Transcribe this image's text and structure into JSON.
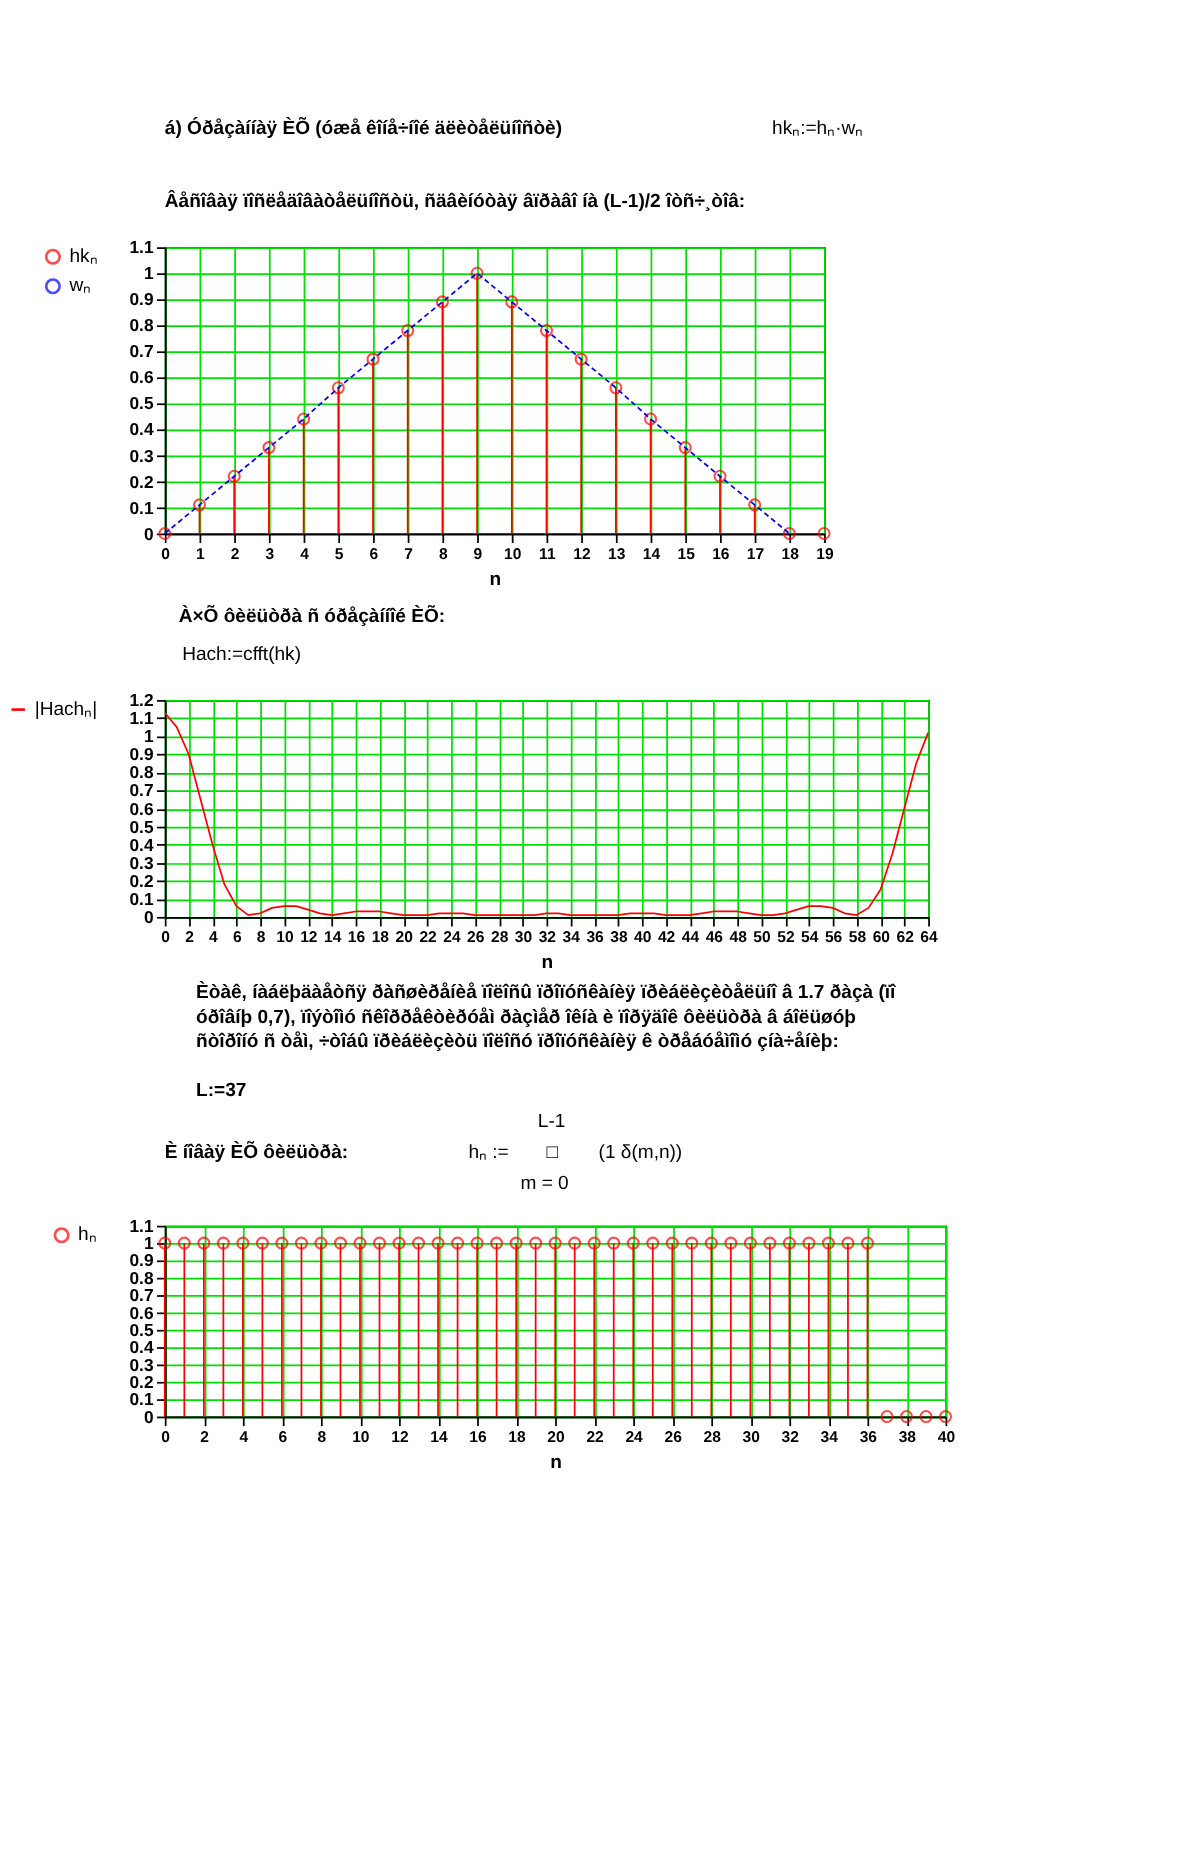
{
  "chart_data": [
    {
      "type": "lollipop",
      "title": "á) Óðåçàííàÿ ÈÕ (óæå êîíå÷íîé äëèòåëüíîñòè)",
      "subtitle": "Âåñîâàÿ ïîñëåäîâàòåëüíîñòü, ñäâèíóòàÿ âïðàâî íà (L-1)/2 îòñ÷¸òîâ:",
      "annotations": [
        "hkₙ:=hₙ·wₙ"
      ],
      "xlabel": "n",
      "xlim": [
        0,
        19
      ],
      "xticks": [
        0,
        1,
        2,
        3,
        4,
        5,
        6,
        7,
        8,
        9,
        10,
        11,
        12,
        13,
        14,
        15,
        16,
        17,
        18,
        19
      ],
      "ylim": [
        0,
        1.1
      ],
      "yticks": [
        0,
        0.1,
        0.2,
        0.3,
        0.4,
        0.5,
        0.6,
        0.7,
        0.8,
        0.9,
        1,
        1.1
      ],
      "grid": true,
      "legend": "left",
      "series": [
        {
          "name": "hkₙ",
          "color": "#ff0000",
          "marker": "circle",
          "x": [
            0,
            1,
            2,
            3,
            4,
            5,
            6,
            7,
            8,
            9,
            10,
            11,
            12,
            13,
            14,
            15,
            16,
            17,
            18,
            19
          ],
          "values": [
            0,
            0.11,
            0.22,
            0.33,
            0.44,
            0.56,
            0.67,
            0.78,
            0.89,
            1,
            0.89,
            0.78,
            0.67,
            0.56,
            0.44,
            0.33,
            0.22,
            0.11,
            0,
            0
          ]
        },
        {
          "name": "wₙ",
          "type": "line",
          "color": "#0000ff",
          "line_style": "dashed",
          "marker": "none",
          "x": [
            0,
            1,
            2,
            3,
            4,
            5,
            6,
            7,
            8,
            9,
            10,
            11,
            12,
            13,
            14,
            15,
            16,
            17,
            18
          ],
          "values": [
            0,
            0.11,
            0.22,
            0.33,
            0.44,
            0.56,
            0.67,
            0.78,
            0.89,
            1,
            0.89,
            0.78,
            0.67,
            0.56,
            0.44,
            0.33,
            0.22,
            0.11,
            0
          ]
        }
      ]
    },
    {
      "type": "line",
      "title": "À×Õ ôèëüòðà ñ óðåçàííîé ÈÕ:",
      "subtitle": "Hach:=cfft(hk)",
      "xlabel": "n",
      "xlim": [
        0,
        64
      ],
      "xticks": [
        0,
        2,
        4,
        6,
        8,
        10,
        12,
        14,
        16,
        18,
        20,
        22,
        24,
        26,
        28,
        30,
        32,
        34,
        36,
        38,
        40,
        42,
        44,
        46,
        48,
        50,
        52,
        54,
        56,
        58,
        60,
        62,
        64
      ],
      "ylim": [
        0,
        1.2
      ],
      "yticks": [
        0,
        0.1,
        0.2,
        0.3,
        0.4,
        0.5,
        0.6,
        0.7,
        0.8,
        0.9,
        1,
        1.1,
        1.2
      ],
      "grid": true,
      "legend": "left",
      "series": [
        {
          "name": "|Hachₙ|",
          "color": "#ff0000",
          "line_style": "solid",
          "x": [
            0,
            1,
            2,
            3,
            4,
            5,
            6,
            7,
            8,
            9,
            10,
            11,
            12,
            13,
            14,
            15,
            16,
            17,
            18,
            19,
            20,
            21,
            22,
            23,
            24,
            25,
            26,
            27,
            28,
            29,
            30,
            31,
            32,
            33,
            34,
            35,
            36,
            37,
            38,
            39,
            40,
            41,
            42,
            43,
            44,
            45,
            46,
            47,
            48,
            49,
            50,
            51,
            52,
            53,
            54,
            55,
            56,
            57,
            58,
            59,
            60,
            61,
            62,
            63,
            64
          ],
          "values": [
            1.13,
            1.05,
            0.9,
            0.65,
            0.4,
            0.18,
            0.06,
            0.01,
            0.02,
            0.05,
            0.06,
            0.06,
            0.04,
            0.02,
            0.01,
            0.02,
            0.03,
            0.03,
            0.03,
            0.02,
            0.01,
            0.01,
            0.01,
            0.02,
            0.02,
            0.02,
            0.01,
            0.01,
            0.01,
            0.01,
            0.01,
            0.01,
            0.02,
            0.02,
            0.01,
            0.01,
            0.01,
            0.01,
            0.01,
            0.02,
            0.02,
            0.02,
            0.01,
            0.01,
            0.01,
            0.02,
            0.03,
            0.03,
            0.03,
            0.02,
            0.01,
            0.01,
            0.02,
            0.04,
            0.06,
            0.06,
            0.05,
            0.02,
            0.01,
            0.05,
            0.15,
            0.35,
            0.6,
            0.85,
            1.02
          ]
        }
      ]
    },
    {
      "type": "lollipop",
      "annotations": [
        "Èòàê, íàáëþäàåòñÿ ðàñøèðåíèå ïîëîñû ïðîïóñêàíèÿ ïðèáëèçèòåëüíî â 1.7 ðàçà (ïî",
        "óðîâíþ 0,7), ïîýòîìó ñêîððåêòèðóåì ðàçìåð îêíà è ïîðÿäîê ôèëüòðà â áîëüøóþ",
        "ñòîðîíó ñ òåì, ÷òîáû ïðèáëèçèòü ïîëîñó ïðîïóñêàíèÿ ê òðåáóåìîìó çíà÷åíèþ:",
        "L:=37",
        "È íîâàÿ ÈÕ ôèëüòðà:",
        "hₙ :=",
        "L-1",
        "□",
        "(1 δ(m,n))",
        "m = 0"
      ],
      "xlabel": "n",
      "xlim": [
        0,
        40
      ],
      "xticks": [
        0,
        2,
        4,
        6,
        8,
        10,
        12,
        14,
        16,
        18,
        20,
        22,
        24,
        26,
        28,
        30,
        32,
        34,
        36,
        38,
        40
      ],
      "ylim": [
        0,
        1.1
      ],
      "yticks": [
        0,
        0.1,
        0.2,
        0.3,
        0.4,
        0.5,
        0.6,
        0.7,
        0.8,
        0.9,
        1,
        1.1
      ],
      "grid": true,
      "legend": "left",
      "series": [
        {
          "name": "hₙ",
          "color": "#ff0000",
          "marker": "circle",
          "x": [
            0,
            1,
            2,
            3,
            4,
            5,
            6,
            7,
            8,
            9,
            10,
            11,
            12,
            13,
            14,
            15,
            16,
            17,
            18,
            19,
            20,
            21,
            22,
            23,
            24,
            25,
            26,
            27,
            28,
            29,
            30,
            31,
            32,
            33,
            34,
            35,
            36,
            37,
            38,
            39,
            40
          ],
          "values": [
            1,
            1,
            1,
            1,
            1,
            1,
            1,
            1,
            1,
            1,
            1,
            1,
            1,
            1,
            1,
            1,
            1,
            1,
            1,
            1,
            1,
            1,
            1,
            1,
            1,
            1,
            1,
            1,
            1,
            1,
            1,
            1,
            1,
            1,
            1,
            1,
            1,
            0,
            0,
            0,
            0
          ]
        }
      ]
    }
  ]
}
